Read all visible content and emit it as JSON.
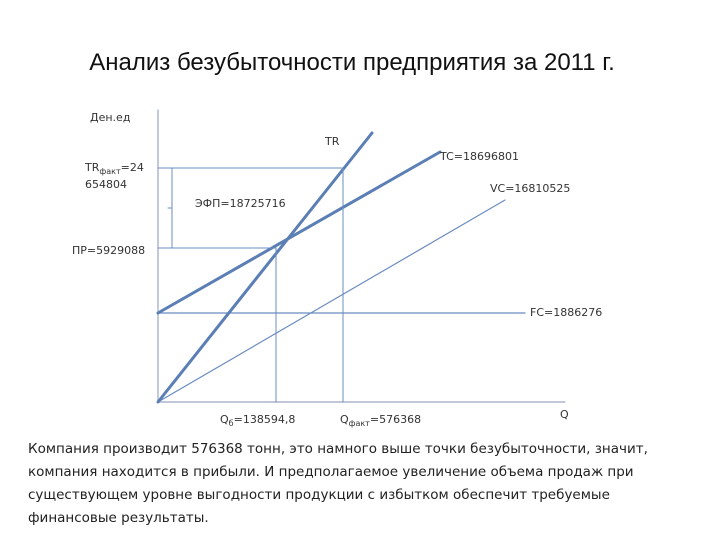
{
  "title": "Анализ безубыточности предприятия за 2011 г.",
  "diagram": {
    "y_axis_label": "Ден.ед",
    "x_axis_label": "Q",
    "tr_label": "TR",
    "tc_label": "TC=18696801",
    "vc_label": "VC=16810525",
    "fc_label": "FC=1886276",
    "efp_label": "ЭФП=18725716",
    "pr_label": "ПР=5929088",
    "tr_fact": {
      "main": "TR",
      "sub": "факт",
      "rest": "=24",
      "line2": "654804"
    },
    "q_b": {
      "main": "Q",
      "sub": "б",
      "rest": "=138594,8"
    },
    "q_fact": {
      "main": "Q",
      "sub": "факт",
      "rest": "=576368"
    }
  },
  "text": {
    "lines": [
      "Компания производит 576368 тонн, это намного выше точки безубыточности, значит,",
      "компания находится в прибыли. И предполагаемое увеличение объема продаж при",
      "существующем уровне выгодности продукции с избытком обеспечит требуемые",
      "финансовые результаты."
    ]
  }
}
